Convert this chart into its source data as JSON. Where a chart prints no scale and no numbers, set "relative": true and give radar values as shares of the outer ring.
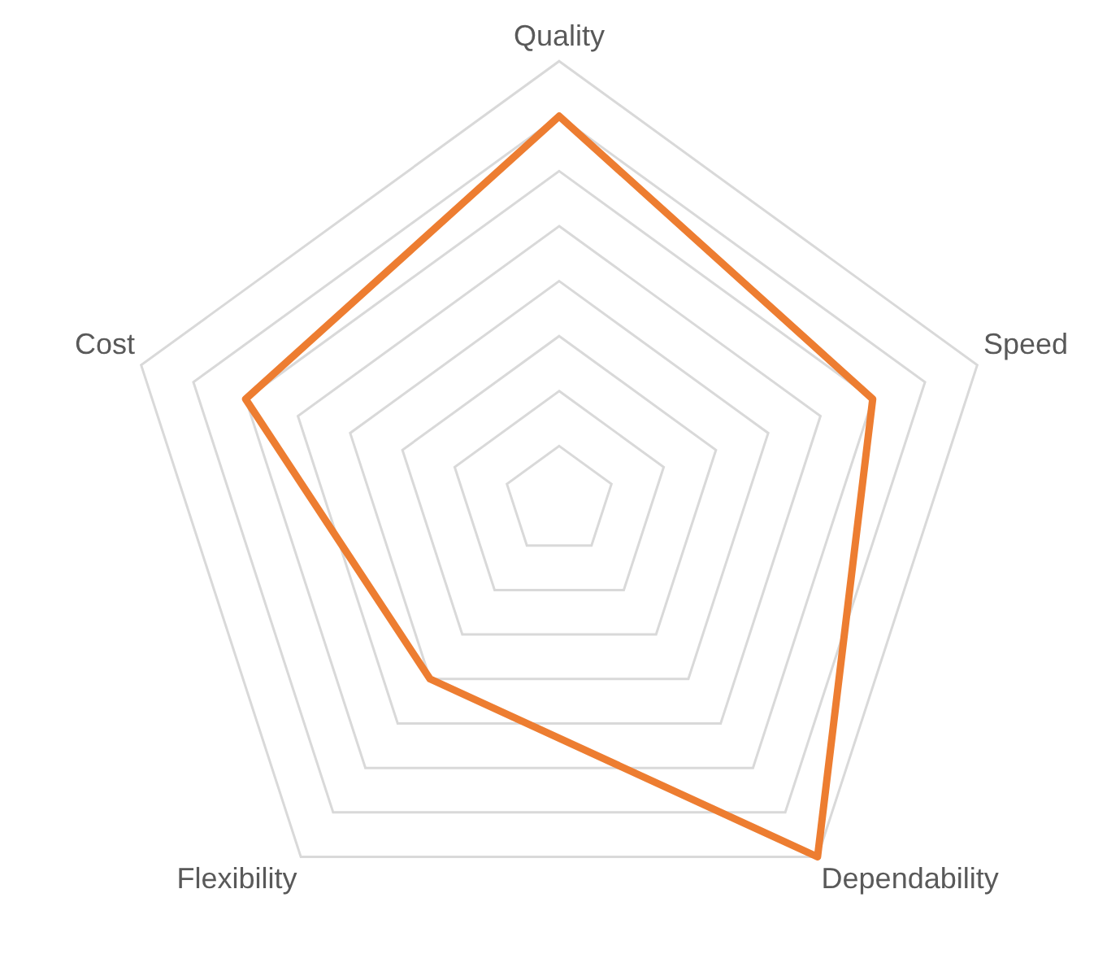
{
  "chart_data": {
    "type": "radar",
    "relative": true,
    "categories": [
      "Quality",
      "Speed",
      "Dependability",
      "Flexibility",
      "Cost"
    ],
    "series": [
      {
        "color": "#ed7d31",
        "values": [
          0.875,
          0.75,
          1,
          0.5,
          0.75
        ]
      }
    ],
    "grid": true,
    "marker": "none"
  }
}
